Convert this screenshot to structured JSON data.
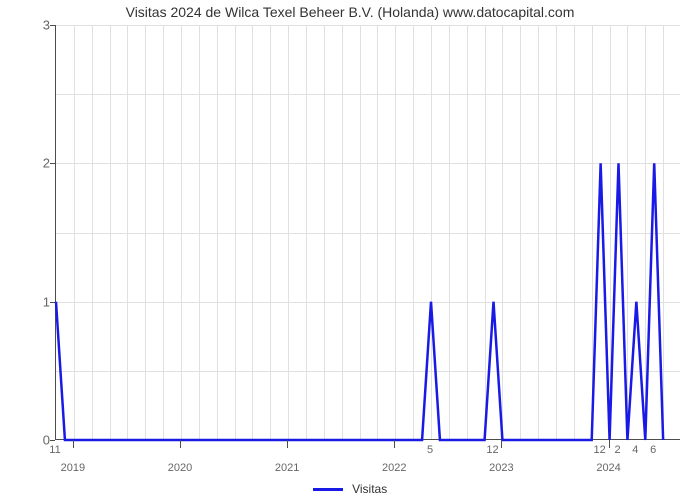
{
  "chart": {
    "type": "line",
    "title": "Visitas 2024 de Wilca Texel Beheer B.V. (Holanda) www.datocapital.com",
    "title_fontsize": 14,
    "title_color": "#333333",
    "background_color": "#ffffff",
    "plot_border_color": "#4d4d4d",
    "grid_color": "#e0e0e0",
    "tick_label_color": "#666666",
    "tick_label_fontsize": 13,
    "minor_tick_fontsize": 11,
    "line_color": "#1a1ae6",
    "line_width": 2.5,
    "ylim": [
      0,
      3
    ],
    "yticks": [
      0,
      1,
      2,
      3
    ],
    "x_range_months": 70,
    "x_major_ticks": [
      {
        "month_index": 0,
        "label": "2019"
      },
      {
        "month_index": 12,
        "label": "2020"
      },
      {
        "month_index": 24,
        "label": "2021"
      },
      {
        "month_index": 36,
        "label": "2022"
      },
      {
        "month_index": 48,
        "label": "2023"
      },
      {
        "month_index": 60,
        "label": "2024"
      }
    ],
    "x_minor_ticks": [
      {
        "month_index": -2,
        "label": "11"
      },
      {
        "month_index": 40,
        "label": "5"
      },
      {
        "month_index": 47,
        "label": "12"
      },
      {
        "month_index": 59,
        "label": "12"
      },
      {
        "month_index": 61,
        "label": "2"
      },
      {
        "month_index": 63,
        "label": "4"
      },
      {
        "month_index": 65,
        "label": "6"
      }
    ],
    "minor_grid_months": [
      2,
      4,
      6,
      8,
      10,
      14,
      16,
      18,
      20,
      22,
      26,
      28,
      30,
      32,
      34,
      38,
      40,
      42,
      44,
      46,
      50,
      52,
      54,
      56,
      58,
      62,
      64,
      66,
      68
    ],
    "series": {
      "name": "Visitas",
      "points": [
        {
          "x": -2,
          "y": 1
        },
        {
          "x": -1,
          "y": 0
        },
        {
          "x": 39,
          "y": 0
        },
        {
          "x": 40,
          "y": 1
        },
        {
          "x": 41,
          "y": 0
        },
        {
          "x": 46,
          "y": 0
        },
        {
          "x": 47,
          "y": 1
        },
        {
          "x": 48,
          "y": 0
        },
        {
          "x": 57,
          "y": 0
        },
        {
          "x": 58,
          "y": 0
        },
        {
          "x": 59,
          "y": 2
        },
        {
          "x": 60,
          "y": 0
        },
        {
          "x": 61,
          "y": 2
        },
        {
          "x": 62,
          "y": 0
        },
        {
          "x": 63,
          "y": 1
        },
        {
          "x": 64,
          "y": 0
        },
        {
          "x": 65,
          "y": 2
        },
        {
          "x": 66,
          "y": 0
        }
      ]
    },
    "legend": {
      "label": "Visitas",
      "swatch_color": "#1a1ae6"
    }
  }
}
